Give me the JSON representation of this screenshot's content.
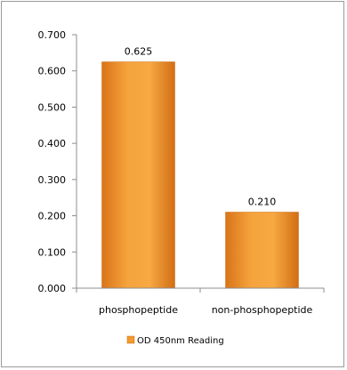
{
  "chart_data": {
    "type": "bar",
    "categories": [
      "phosphopeptide",
      "non-phosphopeptide"
    ],
    "series": [
      {
        "name": "OD 450nm Reading",
        "values": [
          0.625,
          0.21
        ],
        "color": "#f29a2e"
      }
    ],
    "data_labels": [
      "0.625",
      "0.210"
    ],
    "ylim": [
      0,
      0.7
    ],
    "yticks": [
      "0.000",
      "0.100",
      "0.200",
      "0.300",
      "0.400",
      "0.500",
      "0.600",
      "0.700"
    ],
    "grid": false,
    "legend": "bottom",
    "title": "",
    "xlabel": "",
    "ylabel": ""
  }
}
